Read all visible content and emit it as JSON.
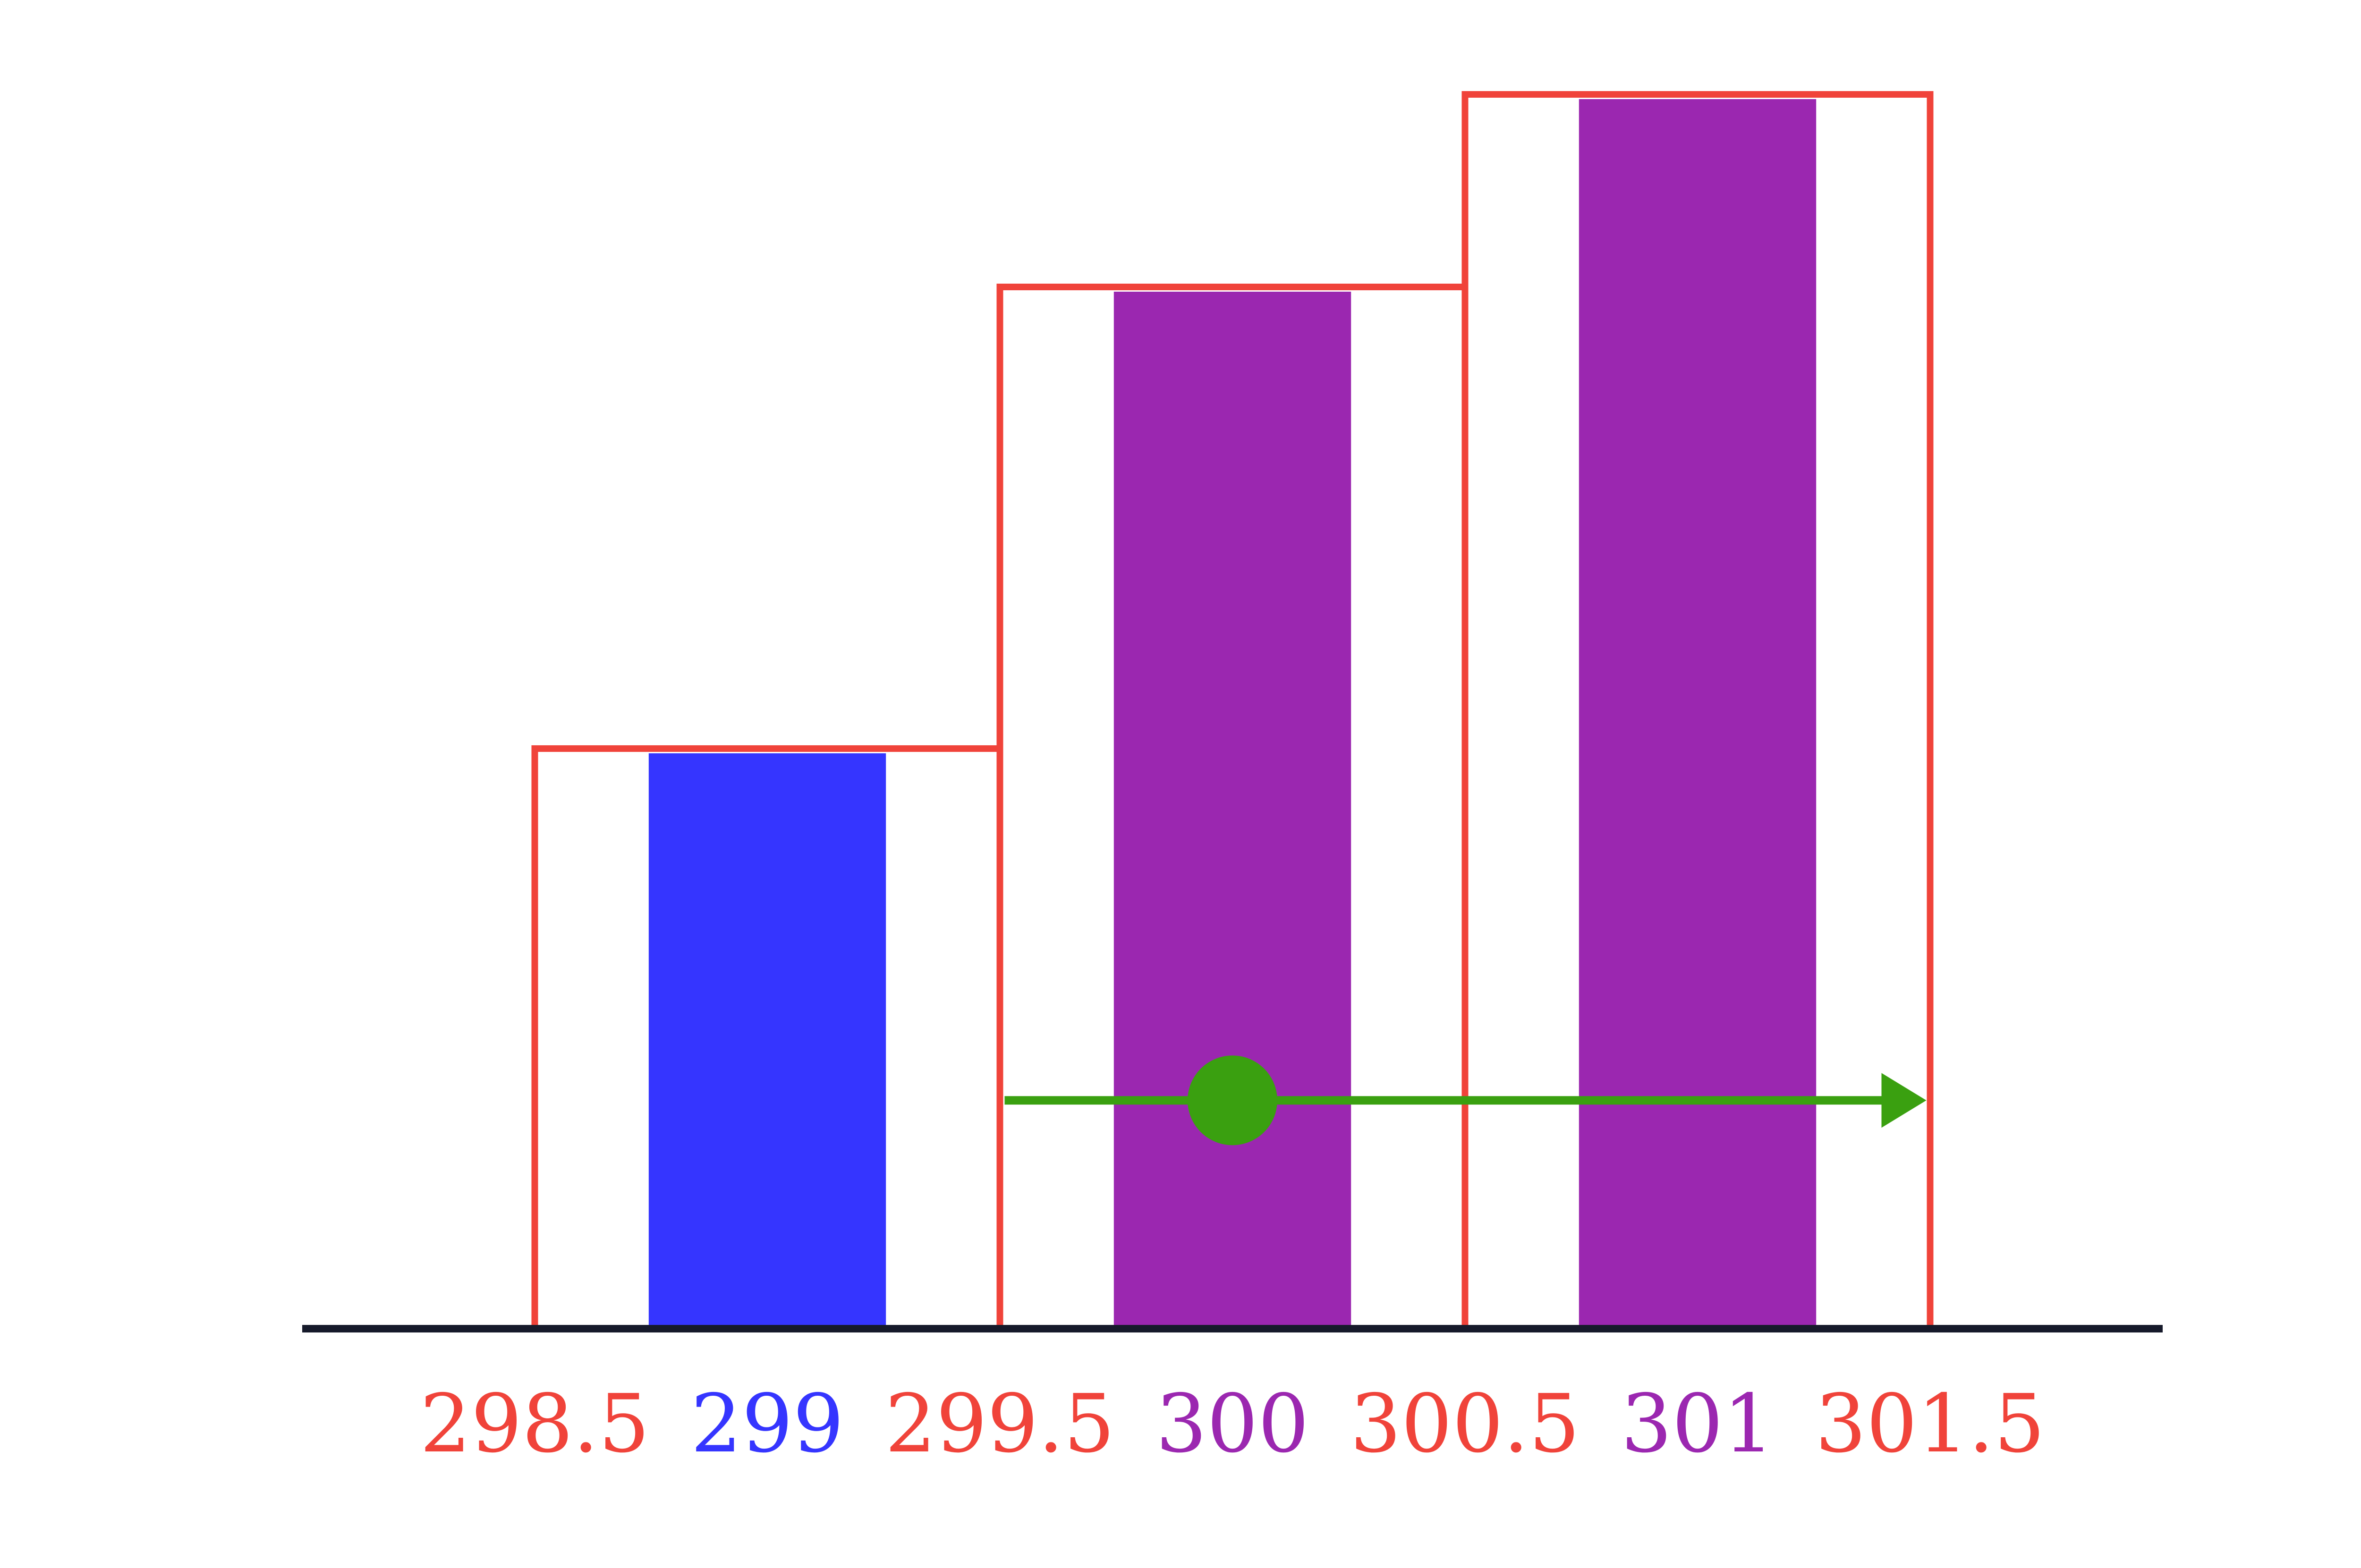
{
  "chart_data": {
    "type": "bar",
    "title": "",
    "xlabel": "",
    "ylabel": "",
    "xlim": [
      298.0,
      302.0
    ],
    "ylim": [
      0,
      1
    ],
    "grid": false,
    "categories": [
      "299",
      "300",
      "301"
    ],
    "series": [
      {
        "values": [
          0.47,
          0.844,
          1.0
        ],
        "colors": [
          "#3535ff",
          "#9b27b0",
          "#9b27b0"
        ]
      }
    ],
    "bins": [
      {
        "from": 298.5,
        "to": 299.5,
        "height": 0.47
      },
      {
        "from": 299.5,
        "to": 300.5,
        "height": 0.844
      },
      {
        "from": 300.5,
        "to": 301.5,
        "height": 1.0
      }
    ],
    "annotation": {
      "point_x": 300,
      "arrow_from_x": 299.5,
      "arrow_to_x": 301.5,
      "y": 0.185,
      "color": "#3aa010"
    },
    "tick_labels": [
      {
        "value": 298.5,
        "text": "298.5",
        "color": "#f0433a"
      },
      {
        "value": 299,
        "text": "299",
        "color": "#3535ff"
      },
      {
        "value": 299.5,
        "text": "299.5",
        "color": "#f0433a"
      },
      {
        "value": 300,
        "text": "300",
        "color": "#9b27b0"
      },
      {
        "value": 300.5,
        "text": "300.5",
        "color": "#f0433a"
      },
      {
        "value": 301,
        "text": "301",
        "color": "#9b27b0"
      },
      {
        "value": 301.5,
        "text": "301.5",
        "color": "#f0433a"
      }
    ],
    "colors": {
      "bin_outline": "#f0433a",
      "axis": "#161a2b"
    }
  }
}
